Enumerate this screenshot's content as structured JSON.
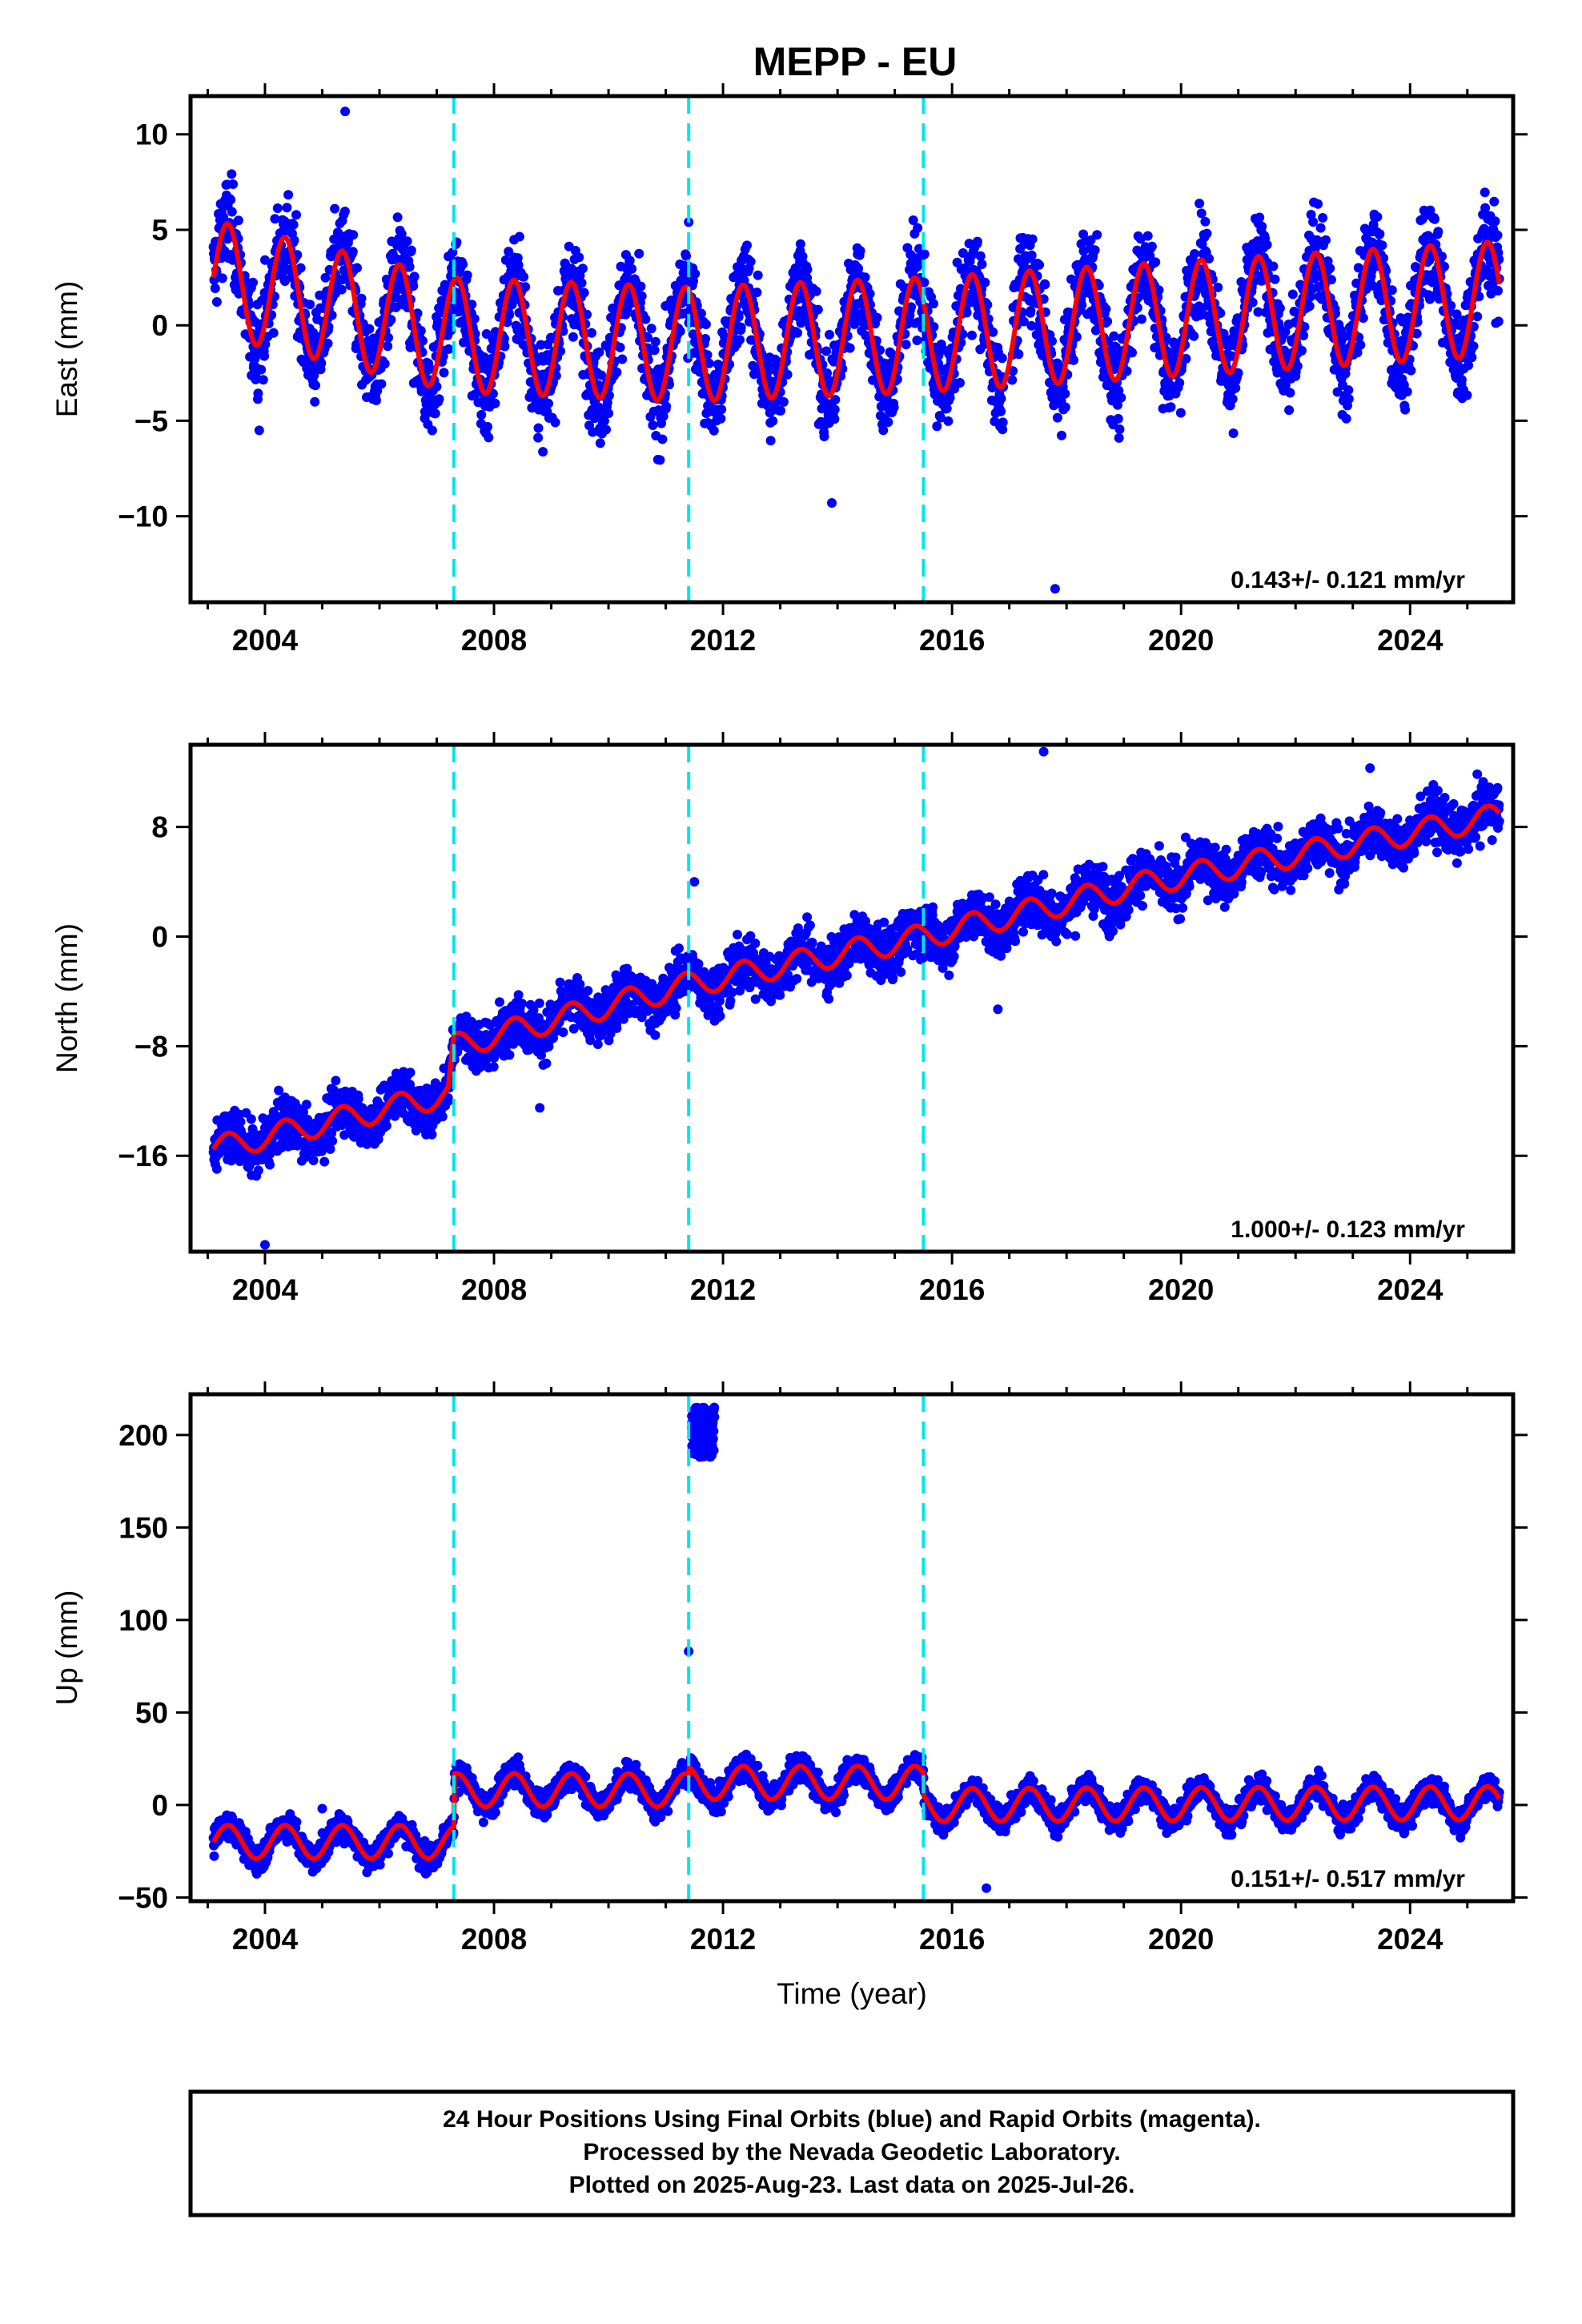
{
  "title": "MEPP - EU",
  "footer": {
    "line1": "24 Hour Positions Using Final Orbits (blue) and Rapid Orbits (magenta).",
    "line2": "Processed by the Nevada Geodetic Laboratory.",
    "line3": "Plotted on 2025-Aug-23. Last data on 2025-Jul-26."
  },
  "colors": {
    "points": "#0000ff",
    "fit": "#ff0000",
    "offsets": "#00e5ee",
    "frame": "#000000"
  },
  "chart_data": [
    {
      "type": "scatter",
      "component": "east",
      "ylabel": "East (mm)",
      "xlabel": "",
      "xlim": [
        2002.7,
        2025.8
      ],
      "ylim": [
        -14.5,
        12
      ],
      "xticks": [
        "2004",
        "2008",
        "2012",
        "2016",
        "2020",
        "2024"
      ],
      "yticks": [
        "10",
        "5",
        "0",
        "−5",
        "−10"
      ],
      "ytick_values": [
        10,
        5,
        0,
        -5,
        -10
      ],
      "rate": "0.143+/- 0.121 mm/yr",
      "offsets": [
        2007.3,
        2011.4,
        2015.5
      ],
      "data_start": 2003.1,
      "data_end": 2025.56,
      "trend_mm_per_yr": 0.143,
      "series": [
        {
          "segments": [
            [
              2003.1,
              2.5
            ],
            [
              2007.3,
              -0.5
            ],
            [
              2011.4,
              -1.0
            ],
            [
              2015.5,
              -0.5
            ],
            [
              2025.56,
              1.4
            ]
          ],
          "annual_amplitude": 3.0,
          "scatter": 1.7
        }
      ],
      "outliers": [
        [
          2017.8,
          -13.8
        ],
        [
          2013.9,
          -9.3
        ],
        [
          2005.4,
          11.2
        ],
        [
          2003.9,
          -5.5
        ],
        [
          2011.4,
          5.4
        ]
      ]
    },
    {
      "type": "scatter",
      "component": "north",
      "ylabel": "North (mm)",
      "xlabel": "",
      "xlim": [
        2002.7,
        2025.8
      ],
      "ylim": [
        -23,
        14
      ],
      "xticks": [
        "2004",
        "2008",
        "2012",
        "2016",
        "2020",
        "2024"
      ],
      "yticks": [
        "8",
        "0",
        "−8",
        "−16"
      ],
      "ytick_values": [
        8,
        0,
        -8,
        -16
      ],
      "rate": "1.000+/- 0.123 mm/yr",
      "offsets": [
        2007.3,
        2011.4,
        2015.5
      ],
      "data_start": 2003.1,
      "data_end": 2025.56,
      "series": [
        {
          "segments": [
            [
              2003.1,
              -15.5
            ],
            [
              2007.2,
              -11.5
            ],
            [
              2007.3,
              -8.0
            ],
            [
              2011.4,
              -3.5
            ],
            [
              2015.5,
              0.0
            ],
            [
              2019.5,
              4.0
            ],
            [
              2025.56,
              8.8
            ]
          ],
          "annual_amplitude": 0.9,
          "scatter": 1.3
        }
      ],
      "outliers": [
        [
          2017.6,
          13.5
        ],
        [
          2004.0,
          -22.5
        ],
        [
          2008.8,
          -12.5
        ],
        [
          2016.8,
          -5.3
        ],
        [
          2023.3,
          12.3
        ],
        [
          2011.5,
          4.0
        ]
      ]
    },
    {
      "type": "scatter",
      "component": "up",
      "ylabel": "Up (mm)",
      "xlabel": "Time (year)",
      "xlim": [
        2002.7,
        2025.8
      ],
      "ylim": [
        -52,
        222
      ],
      "xticks": [
        "2004",
        "2008",
        "2012",
        "2016",
        "2020",
        "2024"
      ],
      "yticks": [
        "200",
        "150",
        "100",
        "50",
        "0",
        "−50"
      ],
      "ytick_values": [
        200,
        150,
        100,
        50,
        0,
        -50
      ],
      "rate": "0.151+/- 0.517 mm/yr",
      "offsets": [
        2007.3,
        2011.4,
        2015.5
      ],
      "data_start": 2003.1,
      "data_end": 2025.56,
      "series": [
        {
          "segments": [
            [
              2003.1,
              -20
            ],
            [
              2007.3,
              -20
            ],
            [
              2007.31,
              8
            ],
            [
              2011.4,
              8
            ],
            [
              2011.41,
              12
            ],
            [
              2015.5,
              12
            ],
            [
              2015.51,
              0
            ],
            [
              2025.56,
              1
            ]
          ],
          "annual_amplitude": 9.0,
          "scatter": 5.0
        }
      ],
      "cluster": {
        "x": [
          2011.45,
          2011.85
        ],
        "y": [
          188,
          215
        ]
      },
      "outliers": [
        [
          2011.4,
          83
        ],
        [
          2016.6,
          -45
        ],
        [
          2005.0,
          -2
        ]
      ]
    }
  ]
}
